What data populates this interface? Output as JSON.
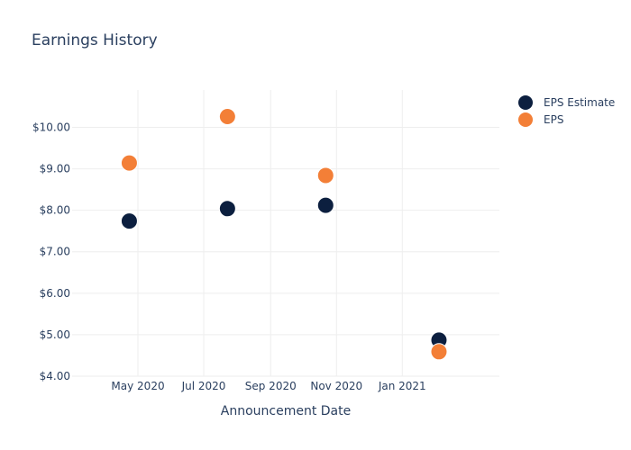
{
  "chart_data": {
    "type": "scatter",
    "title": "Earnings History",
    "xlabel": "Announcement Date",
    "ylabel": "",
    "x_axis": {
      "type": "date",
      "range": [
        "2020-03-01",
        "2021-04-01"
      ],
      "ticks": [
        {
          "date": "2020-05-01",
          "label": "May 2020"
        },
        {
          "date": "2020-07-01",
          "label": "Jul 2020"
        },
        {
          "date": "2020-09-01",
          "label": "Sep 2020"
        },
        {
          "date": "2020-11-01",
          "label": "Nov 2020"
        },
        {
          "date": "2021-01-01",
          "label": "Jan 2021"
        }
      ]
    },
    "y_axis": {
      "range": [
        4.0,
        10.9
      ],
      "ticks": [
        {
          "value": 4,
          "label": "$4.00"
        },
        {
          "value": 5,
          "label": "$5.00"
        },
        {
          "value": 6,
          "label": "$6.00"
        },
        {
          "value": 7,
          "label": "$7.00"
        },
        {
          "value": 8,
          "label": "$8.00"
        },
        {
          "value": 9,
          "label": "$9.00"
        },
        {
          "value": 10,
          "label": "$10.00"
        }
      ]
    },
    "grid": true,
    "legend_position": "top-right",
    "series": [
      {
        "name": "EPS Estimate",
        "color": "#0c1f3f",
        "points": [
          {
            "x": "2020-04-23",
            "y": 7.74
          },
          {
            "x": "2020-07-23",
            "y": 8.04
          },
          {
            "x": "2020-10-22",
            "y": 8.12
          },
          {
            "x": "2021-02-04",
            "y": 4.87
          }
        ]
      },
      {
        "name": "EPS",
        "color": "#f37f37",
        "points": [
          {
            "x": "2020-04-23",
            "y": 9.14
          },
          {
            "x": "2020-07-23",
            "y": 10.26
          },
          {
            "x": "2020-10-22",
            "y": 8.84
          },
          {
            "x": "2021-02-04",
            "y": 4.59
          }
        ]
      }
    ]
  }
}
